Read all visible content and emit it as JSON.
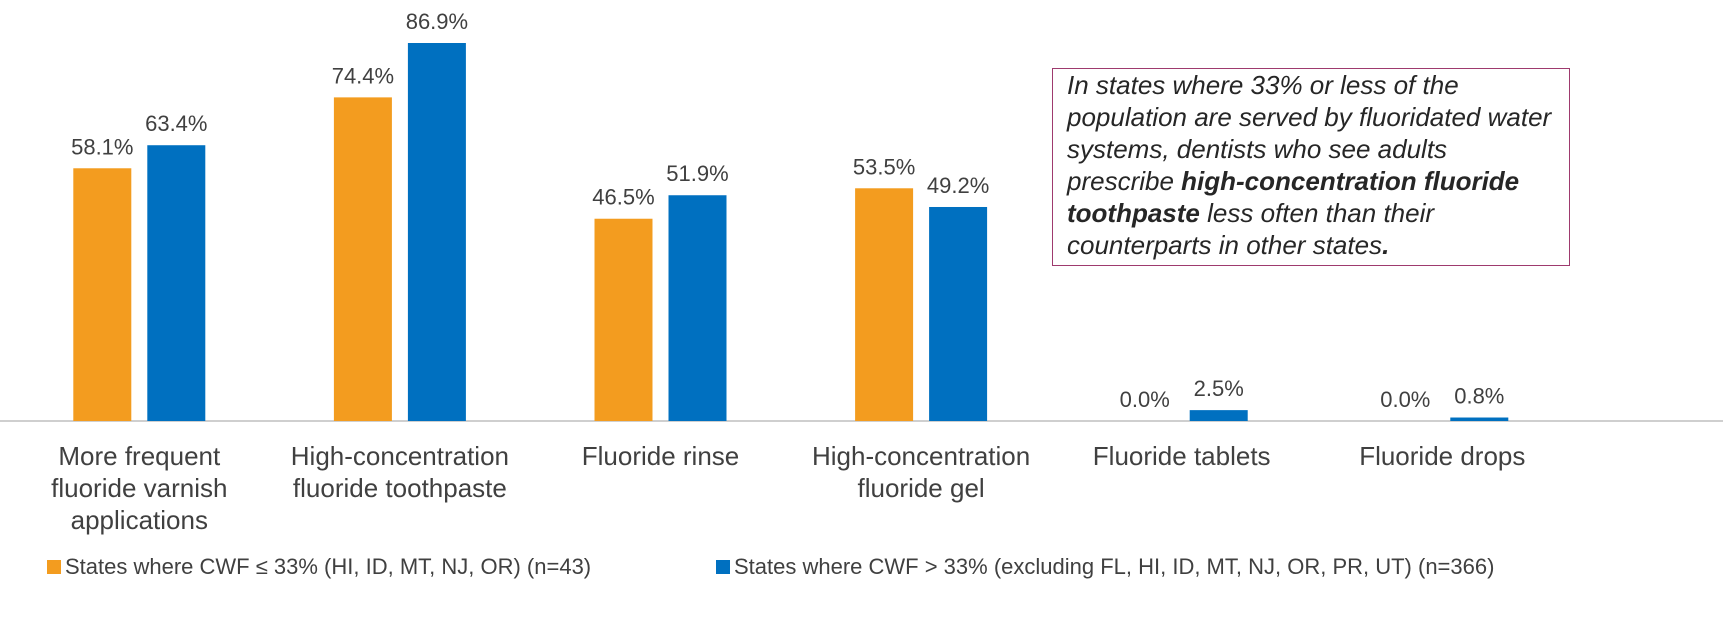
{
  "chart_data": {
    "type": "bar",
    "categories": [
      "More frequent fluoride varnish applications",
      "High-concentration fluoride toothpaste",
      "Fluoride rinse",
      "High-concentration fluoride gel",
      "Fluoride tablets",
      "Fluoride drops"
    ],
    "series": [
      {
        "name": "States where CWF ≤ 33% (HI, ID, MT, NJ, OR) (n=43)",
        "color": "#F39C1F",
        "values": [
          58.1,
          74.4,
          46.5,
          53.5,
          0.0,
          0.0
        ],
        "value_labels": [
          "58.1%",
          "74.4%",
          "46.5%",
          "53.5%",
          "0.0%",
          "0.0%"
        ]
      },
      {
        "name": "States where CWF > 33% (excluding FL, HI, ID, MT, NJ, OR, PR, UT) (n=366)",
        "color": "#0070C0",
        "values": [
          63.4,
          86.9,
          51.9,
          49.2,
          2.5,
          0.8
        ],
        "value_labels": [
          "63.4%",
          "86.9%",
          "51.9%",
          "49.2%",
          "2.5%",
          "0.8%"
        ]
      }
    ],
    "annotation": [
      "In states where 33% or less of the population are served by fluoridated water systems, dentists who see adults prescribe ",
      "high-concentration fluoride toothpaste",
      " less often than their counterparts in other states",
      "."
    ]
  }
}
